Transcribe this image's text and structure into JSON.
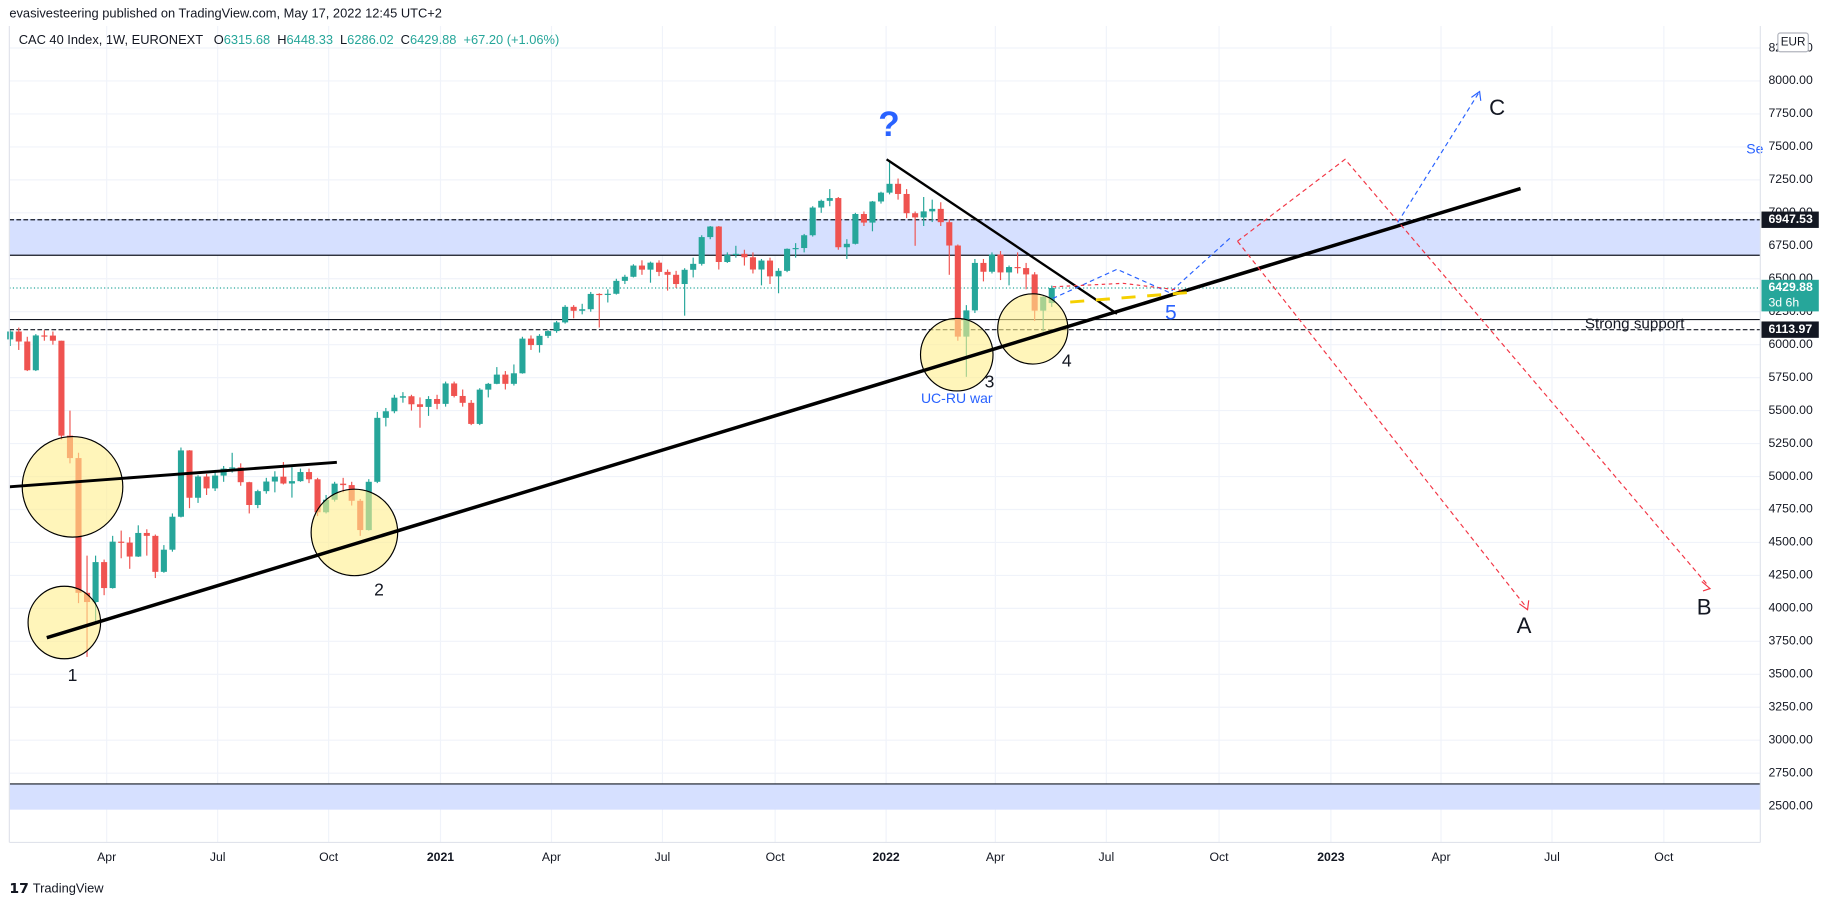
{
  "header": "evasivesteering published on TradingView.com, May 17, 2022 12:45 UTC+2",
  "footer": "TradingView",
  "chart_data": {
    "type": "candlestick",
    "symbol": "CAC 40 Index, 1W, EURONEXT",
    "ohlc": [
      {
        "label": "O",
        "value": 6315.68
      },
      {
        "label": "H",
        "value": 6448.33
      },
      {
        "label": "L",
        "value": 6286.02
      },
      {
        "label": "C",
        "value": 6429.88
      }
    ],
    "change": "+67.20 (+1.06%)",
    "currency": "EUR",
    "up_color": "#26a69a",
    "down_color": "#ef5350",
    "grid": true,
    "candles": [
      [
        6040,
        6110,
        5990,
        6100
      ],
      [
        6100,
        6130,
        5960,
        6024
      ],
      [
        6024,
        6060,
        5800,
        5806
      ],
      [
        5806,
        6080,
        5800,
        6070
      ],
      [
        6070,
        6110,
        6030,
        6069
      ],
      [
        6069,
        6100,
        6000,
        6030
      ],
      [
        6030,
        6030,
        5280,
        5310
      ],
      [
        5310,
        5500,
        5100,
        5140
      ],
      [
        5140,
        5180,
        4040,
        4118
      ],
      [
        4118,
        4400,
        3632,
        4048
      ],
      [
        4048,
        4400,
        3900,
        4351
      ],
      [
        4351,
        4370,
        4100,
        4154
      ],
      [
        4154,
        4550,
        4150,
        4506
      ],
      [
        4506,
        4590,
        4380,
        4499
      ],
      [
        4499,
        4540,
        4300,
        4393
      ],
      [
        4393,
        4630,
        4390,
        4572
      ],
      [
        4572,
        4600,
        4400,
        4550
      ],
      [
        4550,
        4560,
        4230,
        4277
      ],
      [
        4277,
        4480,
        4270,
        4445
      ],
      [
        4445,
        4720,
        4430,
        4695
      ],
      [
        4695,
        5220,
        4690,
        5198
      ],
      [
        5198,
        5200,
        4760,
        4839
      ],
      [
        4839,
        5010,
        4800,
        5000
      ],
      [
        5000,
        5020,
        4860,
        4910
      ],
      [
        4910,
        5050,
        4890,
        5007
      ],
      [
        5007,
        5080,
        4960,
        5060
      ],
      [
        5060,
        5180,
        5030,
        5069
      ],
      [
        5069,
        5100,
        4930,
        4957
      ],
      [
        4957,
        4960,
        4720,
        4784
      ],
      [
        4784,
        4900,
        4760,
        4889
      ],
      [
        4889,
        4990,
        4870,
        4962
      ],
      [
        4962,
        5040,
        4880,
        4999
      ],
      [
        4999,
        5110,
        4940,
        4947
      ],
      [
        4947,
        5070,
        4840,
        4965
      ],
      [
        4965,
        5060,
        4960,
        5034
      ],
      [
        5034,
        5060,
        4950,
        4979
      ],
      [
        4979,
        4990,
        4700,
        4729
      ],
      [
        4729,
        4860,
        4720,
        4824
      ],
      [
        4824,
        4960,
        4810,
        4946
      ],
      [
        4946,
        4990,
        4880,
        4935
      ],
      [
        4935,
        4960,
        4780,
        4816
      ],
      [
        4816,
        4830,
        4550,
        4594
      ],
      [
        4594,
        4980,
        4590,
        4960
      ],
      [
        4960,
        5490,
        4950,
        5445
      ],
      [
        5445,
        5520,
        5380,
        5495
      ],
      [
        5495,
        5620,
        5480,
        5598
      ],
      [
        5598,
        5640,
        5560,
        5609
      ],
      [
        5609,
        5620,
        5500,
        5548
      ],
      [
        5548,
        5600,
        5370,
        5528
      ],
      [
        5528,
        5610,
        5460,
        5588
      ],
      [
        5588,
        5620,
        5510,
        5551
      ],
      [
        5551,
        5720,
        5530,
        5706
      ],
      [
        5706,
        5720,
        5600,
        5611
      ],
      [
        5611,
        5660,
        5530,
        5559
      ],
      [
        5559,
        5580,
        5390,
        5399
      ],
      [
        5399,
        5670,
        5390,
        5659
      ],
      [
        5659,
        5710,
        5600,
        5703
      ],
      [
        5703,
        5830,
        5700,
        5773
      ],
      [
        5773,
        5800,
        5660,
        5703
      ],
      [
        5703,
        5850,
        5690,
        5783
      ],
      [
        5783,
        6060,
        5780,
        6046
      ],
      [
        6046,
        6070,
        5960,
        5997
      ],
      [
        5997,
        6080,
        5940,
        6067
      ],
      [
        6067,
        6110,
        6050,
        6103
      ],
      [
        6103,
        6180,
        6090,
        6169
      ],
      [
        6169,
        6300,
        6160,
        6287
      ],
      [
        6287,
        6300,
        6200,
        6257
      ],
      [
        6257,
        6310,
        6230,
        6269
      ],
      [
        6269,
        6400,
        6250,
        6385
      ],
      [
        6385,
        6390,
        6130,
        6380
      ],
      [
        6380,
        6420,
        6320,
        6386
      ],
      [
        6386,
        6500,
        6380,
        6484
      ],
      [
        6484,
        6530,
        6460,
        6515
      ],
      [
        6515,
        6610,
        6510,
        6600
      ],
      [
        6600,
        6640,
        6530,
        6569
      ],
      [
        6569,
        6630,
        6470,
        6622
      ],
      [
        6622,
        6640,
        6520,
        6552
      ],
      [
        6552,
        6570,
        6410,
        6530
      ],
      [
        6530,
        6560,
        6430,
        6460
      ],
      [
        6460,
        6580,
        6220,
        6568
      ],
      [
        6568,
        6660,
        6510,
        6613
      ],
      [
        6613,
        6830,
        6600,
        6816
      ],
      [
        6816,
        6900,
        6800,
        6896
      ],
      [
        6896,
        6900,
        6570,
        6627
      ],
      [
        6627,
        6700,
        6620,
        6681
      ],
      [
        6681,
        6750,
        6660,
        6689
      ],
      [
        6689,
        6720,
        6600,
        6663
      ],
      [
        6663,
        6700,
        6540,
        6570
      ],
      [
        6570,
        6650,
        6450,
        6638
      ],
      [
        6638,
        6660,
        6460,
        6518
      ],
      [
        6518,
        6580,
        6390,
        6560
      ],
      [
        6560,
        6730,
        6550,
        6727
      ],
      [
        6727,
        6770,
        6660,
        6733
      ],
      [
        6733,
        6840,
        6700,
        6830
      ],
      [
        6830,
        7050,
        6820,
        7040
      ],
      [
        7040,
        7100,
        7000,
        7091
      ],
      [
        7091,
        7180,
        7050,
        7112
      ],
      [
        7112,
        7120,
        6720,
        6739
      ],
      [
        6739,
        6800,
        6650,
        6765
      ],
      [
        6765,
        7000,
        6760,
        6991
      ],
      [
        6991,
        7010,
        6900,
        6926
      ],
      [
        6926,
        7090,
        6860,
        7086
      ],
      [
        7086,
        7160,
        7070,
        7153
      ],
      [
        7153,
        7384,
        7140,
        7220
      ],
      [
        7220,
        7260,
        7100,
        7143
      ],
      [
        7143,
        7180,
        6960,
        6997
      ],
      [
        6997,
        7010,
        6750,
        6965
      ],
      [
        6965,
        7120,
        6900,
        7011
      ],
      [
        7011,
        7100,
        6930,
        7030
      ],
      [
        7030,
        7080,
        6900,
        6929
      ],
      [
        6929,
        6950,
        6530,
        6752
      ],
      [
        6752,
        6760,
        6030,
        6061
      ],
      [
        6061,
        6300,
        5756,
        6260
      ],
      [
        6260,
        6650,
        6240,
        6620
      ],
      [
        6620,
        6650,
        6480,
        6553
      ],
      [
        6553,
        6700,
        6540,
        6684
      ],
      [
        6684,
        6710,
        6490,
        6548
      ],
      [
        6548,
        6600,
        6450,
        6589
      ],
      [
        6589,
        6700,
        6540,
        6581
      ],
      [
        6581,
        6620,
        6420,
        6533
      ],
      [
        6533,
        6550,
        6180,
        6258
      ],
      [
        6258,
        6370,
        6100,
        6362.68
      ],
      [
        6315.68,
        6448.33,
        6286.02,
        6429.88
      ]
    ],
    "xlim": [
      -0.1,
      205.0
    ],
    "xticks": [
      {
        "value": 11.3,
        "label": "Apr"
      },
      {
        "value": 24.3,
        "label": "Jul"
      },
      {
        "value": 37.3,
        "label": "Oct"
      },
      {
        "value": 50.4,
        "label": "2021"
      },
      {
        "value": 63.4,
        "label": "Apr"
      },
      {
        "value": 76.4,
        "label": "Jul"
      },
      {
        "value": 89.6,
        "label": "Oct"
      },
      {
        "value": 102.6,
        "label": "2022"
      },
      {
        "value": 115.4,
        "label": "Apr"
      },
      {
        "value": 128.4,
        "label": "Jul"
      },
      {
        "value": 141.6,
        "label": "Oct"
      },
      {
        "value": 154.7,
        "label": "2023"
      },
      {
        "value": 167.6,
        "label": "Apr"
      },
      {
        "value": 180.6,
        "label": "Jul"
      },
      {
        "value": 193.7,
        "label": "Oct"
      }
    ],
    "ylim": [
      2225,
      8417
    ],
    "yticks": [
      {
        "value": 2500,
        "label": "2500.00"
      },
      {
        "value": 2750,
        "label": "2750.00"
      },
      {
        "value": 3000,
        "label": "3000.00"
      },
      {
        "value": 3250,
        "label": "3250.00"
      },
      {
        "value": 3500,
        "label": "3500.00"
      },
      {
        "value": 3750,
        "label": "3750.00"
      },
      {
        "value": 4000,
        "label": "4000.00"
      },
      {
        "value": 4250,
        "label": "4250.00"
      },
      {
        "value": 4500,
        "label": "4500.00"
      },
      {
        "value": 4750,
        "label": "4750.00"
      },
      {
        "value": 5000,
        "label": "5000.00"
      },
      {
        "value": 5250,
        "label": "5250.00"
      },
      {
        "value": 5500,
        "label": "5500.00"
      },
      {
        "value": 5750,
        "label": "5750.00"
      },
      {
        "value": 6000,
        "label": "6000.00"
      },
      {
        "value": 6250,
        "label": "6250.00"
      },
      {
        "value": 6500,
        "label": "6500.00"
      },
      {
        "value": 6750,
        "label": "6750.00"
      },
      {
        "value": 7000,
        "label": "7000.00"
      },
      {
        "value": 7250,
        "label": "7250.00"
      },
      {
        "value": 7500,
        "label": "7500.00"
      },
      {
        "value": 7750,
        "label": "7750.00"
      },
      {
        "value": 8000,
        "label": "8000.00"
      },
      {
        "value": 8250,
        "label": "8250.00"
      }
    ],
    "last_price": 6429.88,
    "countdown": "3d 6h",
    "levels": [
      6947.53,
      6113.97
    ],
    "annotations": [
      "?",
      "C",
      "Se",
      "Strong support",
      "5",
      "1",
      "2",
      "3",
      "4",
      "UC-RU war",
      "A",
      "B"
    ]
  }
}
